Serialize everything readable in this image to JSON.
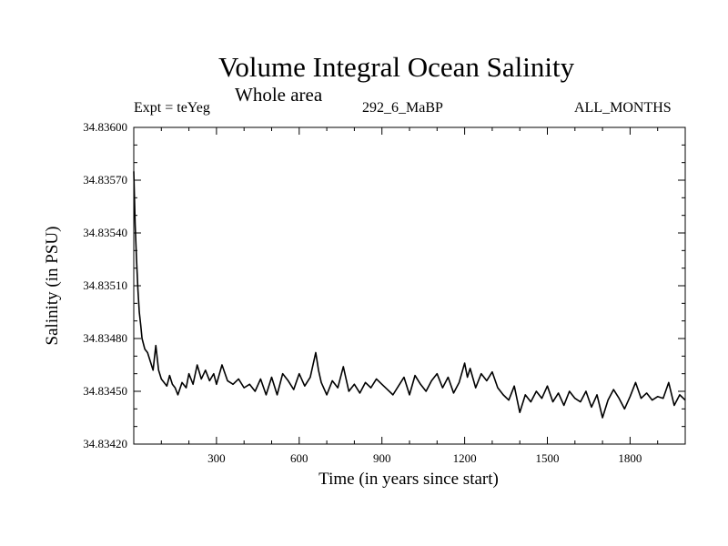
{
  "chart_data": {
    "type": "line",
    "title": "Volume Integral Ocean Salinity",
    "subtitle": "Whole area",
    "header_left": "Expt = teYeg",
    "header_center": "292_6_MaBP",
    "header_right": "ALL_MONTHS",
    "xlabel": "Time (in years since start)",
    "ylabel": "Salinity (in PSU)",
    "xlim": [
      0,
      2000
    ],
    "ylim": [
      34.8342,
      34.836
    ],
    "xticks": [
      300,
      600,
      900,
      1200,
      1500,
      1800
    ],
    "yticks": [
      34.8342,
      34.8345,
      34.8348,
      34.8351,
      34.8354,
      34.8357,
      34.836
    ],
    "ytick_labels": [
      "34.83420",
      "34.83450",
      "34.83480",
      "34.83510",
      "34.83540",
      "34.83570",
      "34.83600"
    ],
    "grid": false,
    "series": [
      {
        "name": "Salinity",
        "x": [
          0,
          5,
          10,
          15,
          20,
          25,
          30,
          40,
          50,
          60,
          70,
          80,
          90,
          100,
          110,
          120,
          130,
          140,
          150,
          160,
          175,
          190,
          200,
          215,
          230,
          245,
          260,
          275,
          290,
          300,
          320,
          340,
          360,
          380,
          400,
          420,
          440,
          460,
          480,
          500,
          520,
          540,
          560,
          580,
          600,
          620,
          640,
          660,
          670,
          680,
          700,
          720,
          740,
          760,
          770,
          780,
          800,
          820,
          840,
          860,
          880,
          900,
          920,
          940,
          960,
          980,
          1000,
          1020,
          1040,
          1060,
          1080,
          1100,
          1120,
          1140,
          1160,
          1180,
          1200,
          1210,
          1220,
          1240,
          1260,
          1280,
          1300,
          1320,
          1340,
          1360,
          1380,
          1400,
          1420,
          1440,
          1460,
          1480,
          1500,
          1520,
          1540,
          1560,
          1580,
          1600,
          1620,
          1640,
          1660,
          1680,
          1700,
          1720,
          1740,
          1760,
          1780,
          1800,
          1820,
          1840,
          1860,
          1880,
          1900,
          1920,
          1940,
          1960,
          1980,
          2000
        ],
        "values": [
          34.83575,
          34.83545,
          34.83525,
          34.83508,
          34.83495,
          34.83488,
          34.8348,
          34.83474,
          34.83472,
          34.83467,
          34.83462,
          34.83476,
          34.83462,
          34.83457,
          34.83455,
          34.83453,
          34.83459,
          34.83454,
          34.83452,
          34.83448,
          34.83455,
          34.83452,
          34.8346,
          34.83454,
          34.83465,
          34.83457,
          34.83462,
          34.83456,
          34.8346,
          34.83454,
          34.83465,
          34.83456,
          34.83454,
          34.83457,
          34.83452,
          34.83454,
          34.8345,
          34.83457,
          34.83448,
          34.83458,
          34.83448,
          34.8346,
          34.83456,
          34.83451,
          34.8346,
          34.83453,
          34.83458,
          34.83472,
          34.83462,
          34.83455,
          34.83448,
          34.83456,
          34.83452,
          34.83464,
          34.83457,
          34.8345,
          34.83454,
          34.83449,
          34.83455,
          34.83452,
          34.83457,
          34.83454,
          34.83451,
          34.83448,
          34.83453,
          34.83458,
          34.83448,
          34.83459,
          34.83454,
          34.8345,
          34.83456,
          34.8346,
          34.83452,
          34.83458,
          34.83449,
          34.83455,
          34.83466,
          34.83458,
          34.83463,
          34.83452,
          34.8346,
          34.83456,
          34.83461,
          34.83452,
          34.83448,
          34.83445,
          34.83453,
          34.83438,
          34.83448,
          34.83444,
          34.8345,
          34.83446,
          34.83453,
          34.83444,
          34.83449,
          34.83442,
          34.8345,
          34.83446,
          34.83444,
          34.8345,
          34.83441,
          34.83448,
          34.83435,
          34.83445,
          34.83451,
          34.83446,
          34.8344,
          34.83447,
          34.83455,
          34.83446,
          34.83449,
          34.83445,
          34.83447,
          34.83446,
          34.83455,
          34.83442,
          34.83448,
          34.83445
        ]
      }
    ]
  }
}
